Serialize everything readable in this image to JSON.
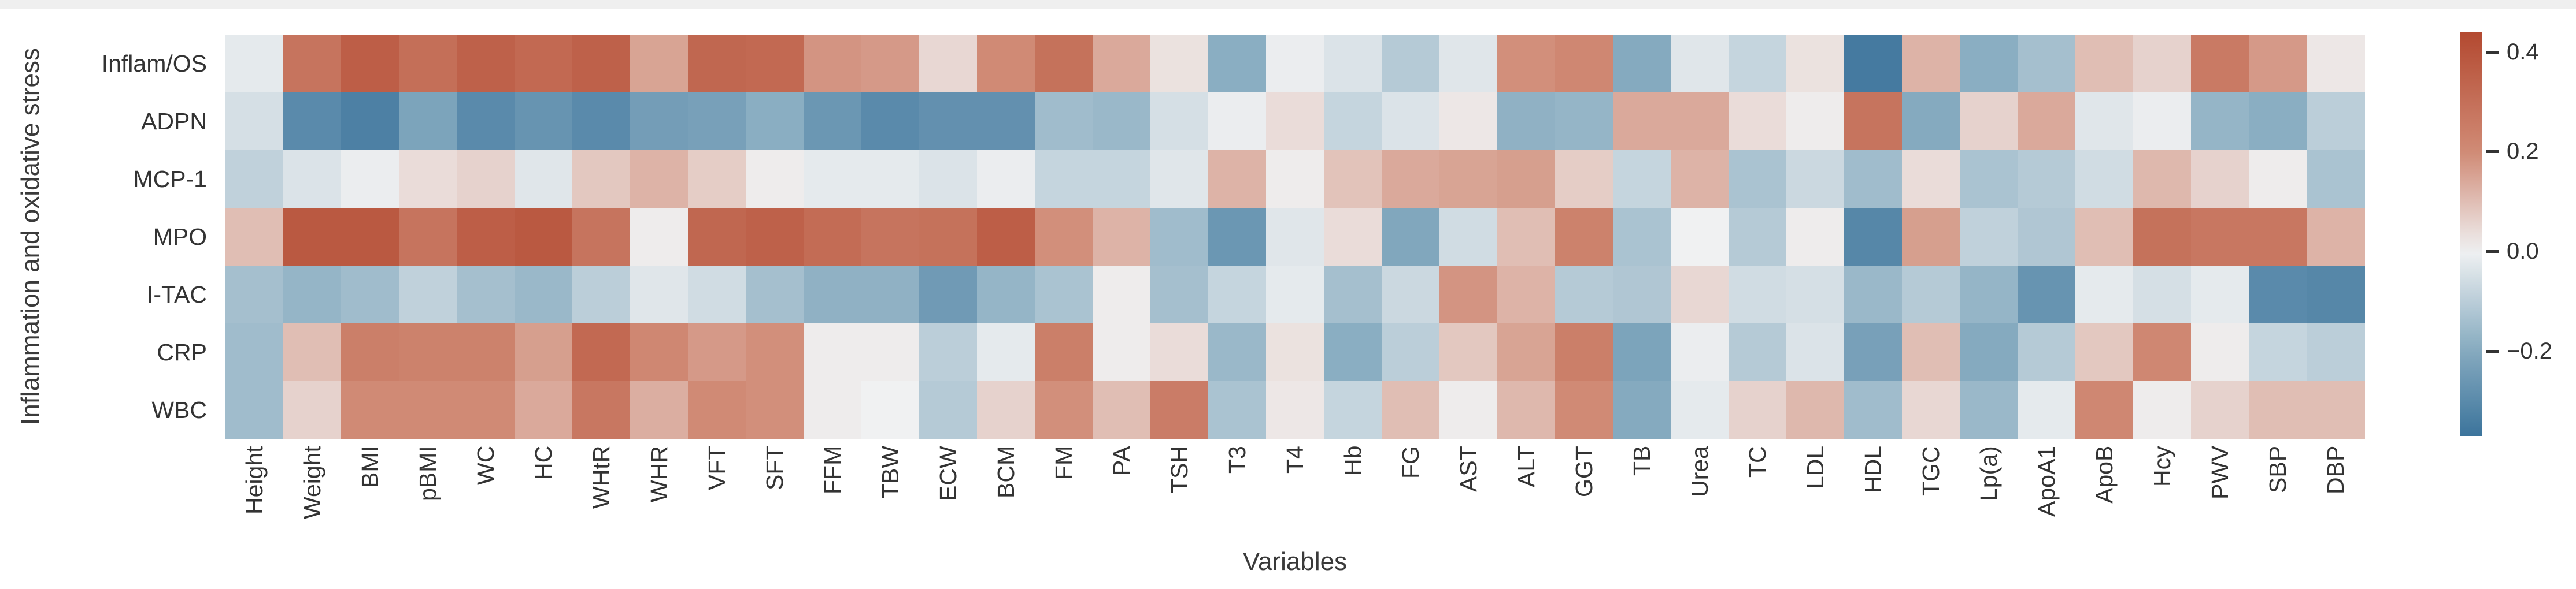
{
  "page": {
    "top_strip_color": "#efefef",
    "background": "#ffffff"
  },
  "chart_data": {
    "type": "heatmap",
    "title": "",
    "xlabel": "Variables",
    "ylabel": "Inflammation and oxidative stress",
    "legend_position": "right-colorbar",
    "grid": false,
    "rows": [
      "Inflam/OS",
      "ADPN",
      "MCP-1",
      "MPO",
      "I-TAC",
      "CRP",
      "WBC"
    ],
    "columns": [
      "Height",
      "Weight",
      "BMI",
      "pBMI",
      "WC",
      "HC",
      "WHtR",
      "WHR",
      "VFT",
      "SFT",
      "FFM",
      "TBW",
      "ECW",
      "BCM",
      "FM",
      "PA",
      "TSH",
      "T3",
      "T4",
      "Hb",
      "FG",
      "AST",
      "ALT",
      "GGT",
      "TB",
      "Urea",
      "TC",
      "LDL",
      "HDL",
      "TGC",
      "Lp(a)",
      "ApoA1",
      "ApoB",
      "Hcy",
      "PWV",
      "SBP",
      "DBP"
    ],
    "matrix": [
      [
        -0.02,
        0.28,
        0.36,
        0.3,
        0.35,
        0.32,
        0.35,
        0.15,
        0.33,
        0.32,
        0.18,
        0.17,
        0.05,
        0.2,
        0.29,
        0.14,
        0.03,
        -0.19,
        -0.01,
        -0.04,
        -0.11,
        -0.03,
        0.19,
        0.21,
        -0.2,
        -0.03,
        -0.08,
        0.03,
        -0.35,
        0.12,
        -0.19,
        -0.14,
        0.1,
        0.06,
        0.26,
        0.17,
        0.02
      ],
      [
        -0.05,
        -0.3,
        -0.33,
        -0.22,
        -0.3,
        -0.27,
        -0.3,
        -0.24,
        -0.23,
        -0.19,
        -0.26,
        -0.3,
        -0.28,
        -0.28,
        -0.15,
        -0.16,
        -0.05,
        -0.01,
        0.04,
        -0.08,
        -0.04,
        0.02,
        -0.18,
        -0.17,
        0.14,
        0.14,
        0.04,
        0.01,
        0.28,
        -0.2,
        0.06,
        0.14,
        -0.03,
        -0.01,
        -0.17,
        -0.19,
        -0.1
      ],
      [
        -0.09,
        -0.04,
        -0.01,
        0.04,
        0.06,
        -0.03,
        0.08,
        0.12,
        0.07,
        0.01,
        -0.02,
        -0.02,
        -0.04,
        -0.01,
        -0.08,
        -0.08,
        -0.03,
        0.12,
        0.01,
        0.09,
        0.14,
        0.15,
        0.16,
        0.07,
        -0.08,
        0.12,
        -0.13,
        -0.07,
        -0.15,
        0.04,
        -0.13,
        -0.11,
        -0.06,
        0.11,
        0.06,
        0.01,
        -0.13
      ],
      [
        0.1,
        0.38,
        0.38,
        0.28,
        0.36,
        0.38,
        0.28,
        0.01,
        0.33,
        0.35,
        0.31,
        0.28,
        0.29,
        0.36,
        0.19,
        0.12,
        -0.15,
        -0.26,
        -0.03,
        0.04,
        -0.21,
        -0.06,
        0.1,
        0.23,
        -0.13,
        0.0,
        -0.11,
        0.01,
        -0.31,
        0.16,
        -0.09,
        -0.12,
        0.1,
        0.29,
        0.27,
        0.27,
        0.12
      ],
      [
        -0.14,
        -0.17,
        -0.15,
        -0.09,
        -0.14,
        -0.16,
        -0.1,
        -0.03,
        -0.06,
        -0.14,
        -0.18,
        -0.18,
        -0.25,
        -0.17,
        -0.13,
        0.01,
        -0.14,
        -0.08,
        -0.02,
        -0.14,
        -0.07,
        0.18,
        0.12,
        -0.11,
        -0.12,
        0.05,
        -0.06,
        -0.05,
        -0.16,
        -0.11,
        -0.17,
        -0.27,
        -0.02,
        -0.05,
        -0.02,
        -0.3,
        -0.31
      ],
      [
        -0.15,
        0.1,
        0.24,
        0.23,
        0.23,
        0.16,
        0.32,
        0.21,
        0.17,
        0.19,
        0.01,
        0.01,
        -0.1,
        -0.02,
        0.24,
        0.01,
        0.04,
        -0.16,
        0.03,
        -0.19,
        -0.1,
        0.08,
        0.15,
        0.24,
        -0.22,
        -0.01,
        -0.11,
        -0.04,
        -0.23,
        0.1,
        -0.2,
        -0.11,
        0.08,
        0.21,
        0.01,
        -0.08,
        -0.1
      ],
      [
        -0.15,
        0.06,
        0.2,
        0.2,
        0.2,
        0.14,
        0.27,
        0.13,
        0.2,
        0.19,
        0.01,
        0.0,
        -0.11,
        0.06,
        0.19,
        0.1,
        0.25,
        -0.13,
        0.02,
        -0.08,
        0.1,
        0.01,
        0.11,
        0.2,
        -0.2,
        -0.02,
        0.06,
        0.11,
        -0.15,
        0.05,
        -0.16,
        -0.02,
        0.21,
        0.01,
        0.06,
        0.1,
        0.1
      ]
    ],
    "colorbar": {
      "vmin": -0.37,
      "vmax": 0.44,
      "ticks": [
        0.4,
        0.2,
        0.0,
        -0.2
      ],
      "tick_labels": [
        "0.4",
        "0.2",
        "0.0",
        "−0.2"
      ]
    },
    "palette": [
      {
        "v": -0.4,
        "c": "#2f6a96"
      },
      {
        "v": -0.2,
        "c": "#85aabf"
      },
      {
        "v": 0.0,
        "c": "#f0f1f2"
      },
      {
        "v": 0.2,
        "c": "#d08a75"
      },
      {
        "v": 0.45,
        "c": "#b2462d"
      }
    ]
  }
}
